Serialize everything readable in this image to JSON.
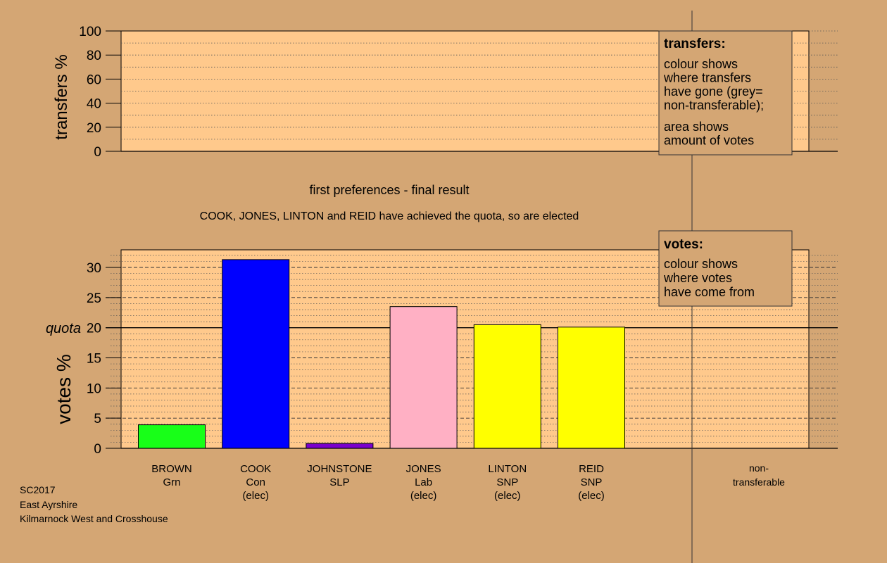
{
  "chart_data": [
    {
      "type": "bar",
      "ylabel": "transfers %",
      "ylim": [
        0,
        100
      ],
      "yticks": [
        0,
        20,
        40,
        60,
        80,
        100
      ],
      "grid": true,
      "series": [],
      "legend": {
        "title": "transfers:",
        "lines_a": [
          "colour shows",
          "where transfers",
          "have gone (grey=",
          "non-transferable);"
        ],
        "lines_b": [
          "area shows",
          "amount of votes"
        ]
      }
    },
    {
      "type": "bar",
      "title": "first preferences - final result",
      "subtitle": "COOK, JONES, LINTON and REID have achieved the quota, so are elected",
      "ylabel": "votes %",
      "ylim": [
        0,
        33
      ],
      "yticks": [
        0,
        5,
        10,
        15,
        20,
        25,
        30
      ],
      "quota": 20,
      "quota_label": "quota",
      "grid": true,
      "categories": [
        {
          "name": "BROWN",
          "party": "Grn",
          "note": "",
          "value": 3.9,
          "color": "#18ff18"
        },
        {
          "name": "COOK",
          "party": "Con",
          "note": "(elec)",
          "value": 31.3,
          "color": "#0000ff"
        },
        {
          "name": "JOHNSTONE",
          "party": "SLP",
          "note": "",
          "value": 0.8,
          "color": "#7a00cc"
        },
        {
          "name": "JONES",
          "party": "Lab",
          "note": "(elec)",
          "value": 23.5,
          "color": "#ffb0c4"
        },
        {
          "name": "LINTON",
          "party": "SNP",
          "note": "(elec)",
          "value": 20.5,
          "color": "#ffff00"
        },
        {
          "name": "REID",
          "party": "SNP",
          "note": "(elec)",
          "value": 20.1,
          "color": "#ffff00"
        }
      ],
      "nontransferable_label": [
        "non-",
        "transferable"
      ],
      "legend": {
        "title": "votes:",
        "lines": [
          "colour shows",
          "where votes",
          "have come from"
        ]
      }
    }
  ],
  "footer": [
    "SC2017",
    "East Ayrshire",
    "Kilmarnock West and Crosshouse"
  ],
  "colors": {
    "background": "#d4a674",
    "panel": "#ffc98c",
    "grid": "#555555",
    "legend_bg": "#d4a674"
  }
}
